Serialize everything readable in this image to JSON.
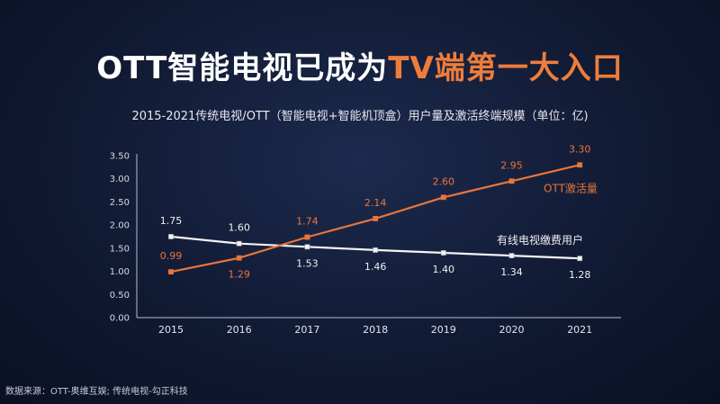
{
  "title": {
    "part1": "OTT智能电视已成为",
    "part2": "TV端第一大入口"
  },
  "subtitle": "2015-2021传统电视/OTT（智能电视+智能机顶盒）用户量及激活终端规模（单位：亿)",
  "source": "数据来源：OTT-奥维互娱; 传统电视-勾正科技",
  "colors": {
    "ott": "#e8763a",
    "traditional": "#f4f4f4",
    "axis": "#b9bccb",
    "grid": "#3a4564",
    "label_white": "#f0f0f0"
  },
  "chart_data": {
    "type": "line",
    "x": [
      "2015",
      "2016",
      "2017",
      "2018",
      "2019",
      "2020",
      "2021"
    ],
    "y_ticks": [
      "0.00",
      "0.50",
      "1.00",
      "1.50",
      "2.00",
      "2.50",
      "3.00",
      "3.50"
    ],
    "ylim": [
      0,
      3.5
    ],
    "grid": false,
    "series": [
      {
        "name": "OTT激活量",
        "color": "#e8763a",
        "values": [
          0.99,
          1.29,
          1.74,
          2.14,
          2.6,
          2.95,
          3.3
        ],
        "labels": [
          "0.99",
          "1.29",
          "1.74",
          "2.14",
          "2.60",
          "2.95",
          "3.30"
        ]
      },
      {
        "name": "有线电视缴费用户",
        "color": "#f4f4f4",
        "values": [
          1.75,
          1.6,
          1.53,
          1.46,
          1.4,
          1.34,
          1.28
        ],
        "labels": [
          "1.75",
          "1.60",
          "1.53",
          "1.46",
          "1.40",
          "1.34",
          "1.28"
        ]
      }
    ]
  }
}
